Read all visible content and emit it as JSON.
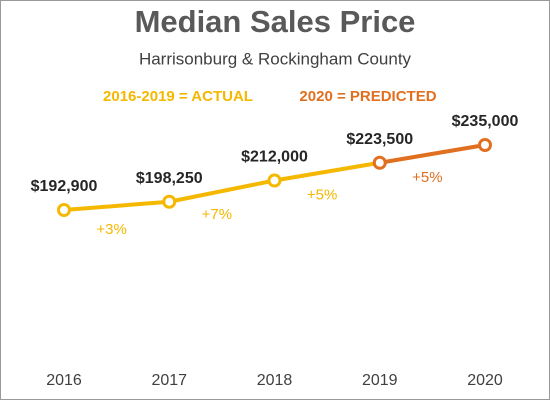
{
  "chart_data": {
    "type": "line",
    "title": "Median Sales Price",
    "subtitle": "Harrisonburg & Rockingham County",
    "categories": [
      "2016",
      "2017",
      "2018",
      "2019",
      "2020"
    ],
    "series": [
      {
        "name": "2016-2019 = ACTUAL",
        "color": "#f5b800",
        "values": [
          192900,
          198250,
          212000,
          223500,
          null
        ],
        "value_labels": [
          "$192,900",
          "$198,250",
          "$212,000",
          "$223,500",
          null
        ]
      },
      {
        "name": "2020 = PREDICTED",
        "color": "#e07020",
        "values": [
          null,
          null,
          null,
          223500,
          235000
        ],
        "value_labels": [
          null,
          null,
          null,
          null,
          "$235,000"
        ]
      }
    ],
    "annotations": [
      "+3%",
      "+7%",
      "+5%",
      "+5%"
    ]
  }
}
